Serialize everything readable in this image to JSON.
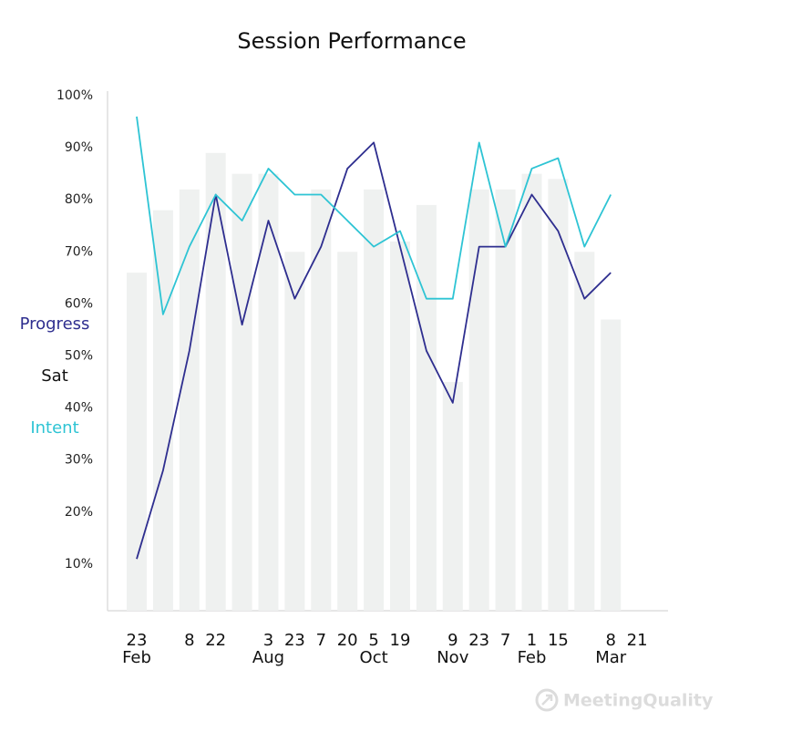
{
  "chart_data": {
    "type": "combo",
    "title": "Session Performance",
    "categories": [
      "23",
      null,
      "8",
      "22",
      null,
      "3",
      "23",
      "7",
      "20",
      "5",
      "19",
      null,
      "9",
      "23",
      "7",
      "1",
      "15",
      null,
      "8",
      "21"
    ],
    "months": [
      "Feb",
      null,
      null,
      null,
      null,
      "Aug",
      null,
      null,
      null,
      "Oct",
      null,
      null,
      "Nov",
      null,
      null,
      "Feb",
      null,
      null,
      "Mar",
      null
    ],
    "series": [
      {
        "name": "Progress",
        "type": "line",
        "color": "#2e2e8f",
        "values": [
          11,
          28,
          51,
          81,
          56,
          76,
          61,
          71,
          86,
          91,
          71,
          51,
          41,
          71,
          71,
          81,
          74,
          61,
          66,
          null
        ]
      },
      {
        "name": "Sat",
        "type": "bar",
        "color": "#eff1f0",
        "legend_color": "#111111",
        "values": [
          66,
          78,
          82,
          89,
          85,
          85,
          70,
          82,
          70,
          82,
          72,
          79,
          45,
          82,
          82,
          85,
          84,
          70,
          57,
          null
        ]
      },
      {
        "name": "Intent",
        "type": "line",
        "color": "#2ec4d4",
        "values": [
          96,
          58,
          71,
          81,
          76,
          86,
          81,
          81,
          76,
          71,
          74,
          61,
          61,
          91,
          71,
          86,
          88,
          71,
          81,
          null
        ]
      }
    ],
    "ylim": [
      0,
      100
    ],
    "yticks": [
      {
        "value": 10,
        "label": "10%"
      },
      {
        "value": 20,
        "label": "20%"
      },
      {
        "value": 30,
        "label": "30%"
      },
      {
        "value": 40,
        "label": "40%"
      },
      {
        "value": 50,
        "label": "50%"
      },
      {
        "value": 60,
        "label": "60%"
      },
      {
        "value": 70,
        "label": "70%"
      },
      {
        "value": 80,
        "label": "80%"
      },
      {
        "value": 90,
        "label": "90%"
      },
      {
        "value": 100,
        "label": "100%"
      }
    ],
    "grid": false,
    "watermark": "MeetingQuality"
  }
}
